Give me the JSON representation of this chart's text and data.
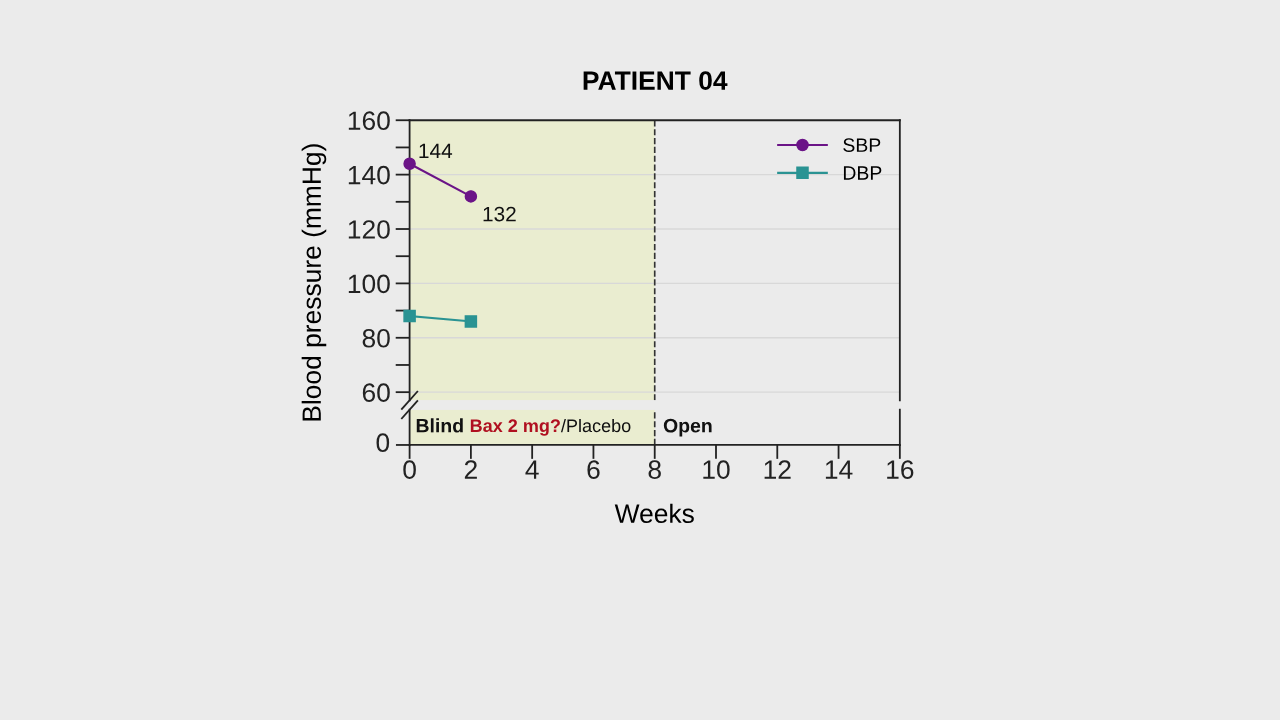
{
  "chart_data": {
    "type": "line",
    "title": "PATIENT 04",
    "xlabel": "Weeks",
    "ylabel": "Blood pressure (mmHg)",
    "x": [
      0,
      2
    ],
    "xlim": [
      0,
      16
    ],
    "xticks": [
      0,
      2,
      4,
      6,
      8,
      10,
      12,
      14,
      16
    ],
    "ylim": [
      57,
      160
    ],
    "yticks": [
      60,
      {
        "value": 70,
        "label": null
      },
      80,
      {
        "value": 90,
        "label": null
      },
      100,
      {
        "value": 110,
        "label": null
      },
      120,
      {
        "value": 130,
        "label": null
      },
      140,
      {
        "value": 150,
        "label": null
      },
      160
    ],
    "grid": "y",
    "legend": "top right",
    "series": [
      {
        "name": "SBP",
        "color": "#6b1487",
        "values": [
          144,
          132
        ],
        "marker": "circle",
        "value_labels": [
          "144",
          "132"
        ]
      },
      {
        "name": "DBP",
        "color": "#2a9393",
        "values": [
          88,
          86
        ],
        "marker": "square"
      }
    ],
    "bands": [
      {
        "axis": "x",
        "from": 0,
        "to": 8,
        "color": "#eaedd0"
      }
    ],
    "ref_lines": [
      {
        "axis": "x",
        "value": 8,
        "line_style": "dashed",
        "color": "#333333"
      }
    ],
    "annotations": [
      "Blind",
      "Bax 2 mg?",
      "/Placebo",
      "Open",
      "0"
    ]
  }
}
